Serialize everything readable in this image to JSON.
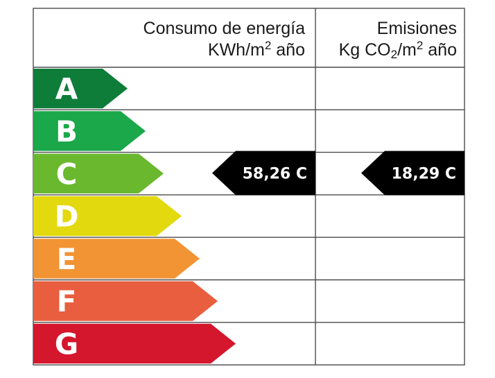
{
  "header": {
    "energy": {
      "title": "Consumo de energía",
      "unit_prefix": "KWh/m",
      "unit_exp": "2",
      "unit_suffix": " año"
    },
    "emissions": {
      "title": "Emisiones",
      "unit_prefix": "Kg CO",
      "unit_sub": "2",
      "unit_mid": "/m",
      "unit_exp": "2",
      "unit_suffix": " año"
    }
  },
  "classes": [
    {
      "letter": "A",
      "color": "#0f7d3a"
    },
    {
      "letter": "B",
      "color": "#1aa84a"
    },
    {
      "letter": "C",
      "color": "#6ab82e"
    },
    {
      "letter": "D",
      "color": "#e3d90f"
    },
    {
      "letter": "E",
      "color": "#f29433"
    },
    {
      "letter": "F",
      "color": "#e95e3e"
    },
    {
      "letter": "G",
      "color": "#d4172c"
    }
  ],
  "ratings": {
    "energy": {
      "value": "58,26",
      "class": "C",
      "level_index": 2,
      "color": "#000000"
    },
    "emissions": {
      "value": "18,29",
      "class": "C",
      "level_index": 2,
      "color": "#000000"
    }
  }
}
